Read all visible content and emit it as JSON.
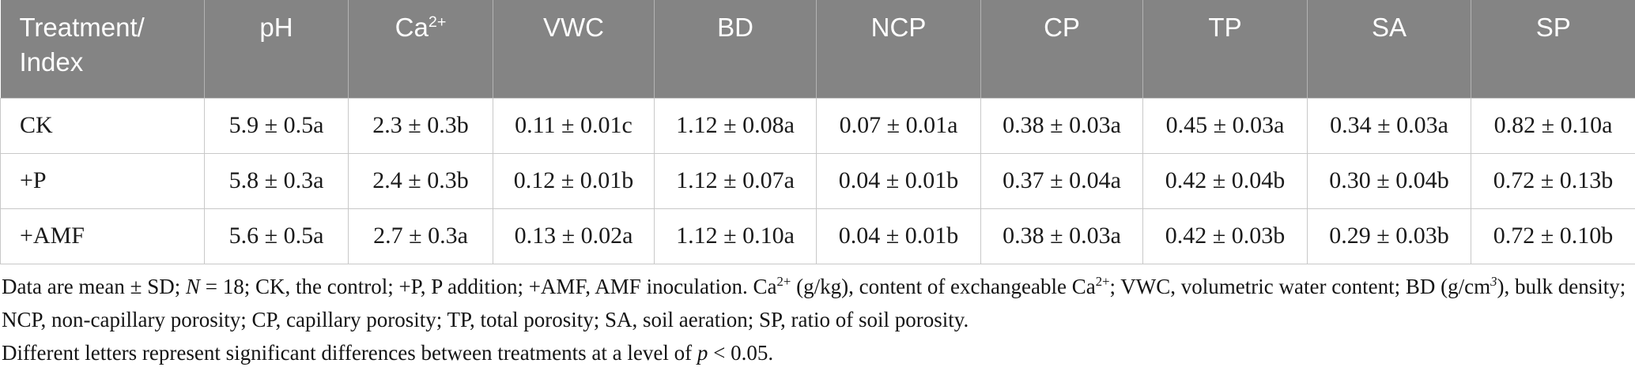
{
  "table": {
    "columns": [
      {
        "line1": "Treatment/",
        "line2": "Index"
      },
      {
        "label": "pH"
      },
      {
        "label": "Ca",
        "sup": "2+"
      },
      {
        "label": "VWC"
      },
      {
        "label": "BD"
      },
      {
        "label": "NCP"
      },
      {
        "label": "CP"
      },
      {
        "label": "TP"
      },
      {
        "label": "SA"
      },
      {
        "label": "SP"
      }
    ],
    "rows": [
      {
        "treatment": "CK",
        "values": [
          "5.9 ± 0.5a",
          "2.3 ± 0.3b",
          "0.11 ± 0.01c",
          "1.12 ± 0.08a",
          "0.07 ± 0.01a",
          "0.38 ± 0.03a",
          "0.45 ± 0.03a",
          "0.34 ± 0.03a",
          "0.82 ± 0.10a"
        ]
      },
      {
        "treatment": "+P",
        "values": [
          "5.8 ± 0.3a",
          "2.4 ± 0.3b",
          "0.12 ± 0.01b",
          "1.12 ± 0.07a",
          "0.04 ± 0.01b",
          "0.37 ± 0.04a",
          "0.42 ± 0.04b",
          "0.30 ± 0.04b",
          "0.72 ± 0.13b"
        ]
      },
      {
        "treatment": "+AMF",
        "values": [
          "5.6 ± 0.5a",
          "2.7 ± 0.3a",
          "0.13 ± 0.02a",
          "1.12 ± 0.10a",
          "0.04 ± 0.01b",
          "0.38 ± 0.03a",
          "0.42 ± 0.03b",
          "0.29 ± 0.03b",
          "0.72 ± 0.10b"
        ]
      }
    ]
  },
  "footnote": {
    "p1": [
      "Data are mean ± SD; ",
      "N",
      " = 18; CK, the control; +P, P addition; +AMF, AMF inoculation. Ca",
      "2+",
      " (g/kg), content of exchangeable Ca",
      "2+",
      "; VWC, volumetric water content; BD (g/cm",
      "3",
      "), bulk density; NCP, non-capillary porosity; CP, capillary porosity; TP, total porosity; SA, soil aeration; SP, ratio of soil porosity."
    ],
    "p2": [
      "Different letters represent significant differences between treatments at a level of ",
      "p",
      " < 0.05."
    ]
  },
  "colors": {
    "header_background": "#848484",
    "header_text": "#ffffff",
    "cell_border": "#c8c8c8",
    "body_text": "#1a1a1a"
  }
}
